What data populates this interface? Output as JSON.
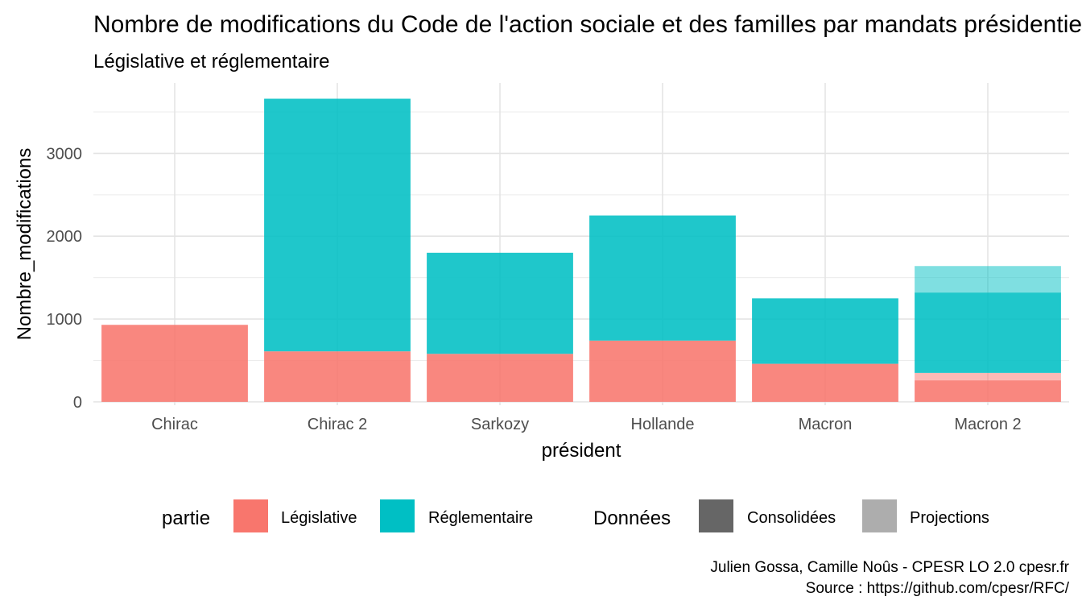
{
  "chart_data": {
    "type": "bar",
    "stacked": true,
    "title": "Nombre de modifications du Code de l'action sociale et des familles par mandats présidentiels",
    "subtitle": "Législative et réglementaire",
    "xlabel": "président",
    "ylabel": "Nombre_modifications",
    "categories": [
      "Chirac",
      "Chirac 2",
      "Sarkozy",
      "Hollande",
      "Macron",
      "Macron 2"
    ],
    "yticks": [
      0,
      1000,
      2000,
      3000
    ],
    "ylim": [
      -40,
      3850
    ],
    "grid": true,
    "legend_position": "bottom",
    "series": [
      {
        "name": "Législative",
        "part": "Législative",
        "data": "Consolidées",
        "color": "#F8766D",
        "values": [
          930,
          610,
          580,
          740,
          460,
          260
        ]
      },
      {
        "name": "Législative",
        "part": "Législative",
        "data": "Projections",
        "color": "#F8766D",
        "values": [
          0,
          0,
          0,
          0,
          0,
          90
        ]
      },
      {
        "name": "Réglementaire",
        "part": "Réglementaire",
        "data": "Consolidées",
        "color": "#00BFC4",
        "values": [
          0,
          3050,
          1220,
          1510,
          790,
          970
        ]
      },
      {
        "name": "Réglementaire",
        "part": "Réglementaire",
        "data": "Projections",
        "color": "#00BFC4",
        "values": [
          0,
          0,
          0,
          0,
          0,
          320
        ]
      }
    ],
    "legend": {
      "partie": {
        "title": "partie",
        "items": [
          {
            "label": "Législative",
            "color": "#F8766D"
          },
          {
            "label": "Réglementaire",
            "color": "#00BFC4"
          }
        ]
      },
      "donnees": {
        "title": "Données",
        "items": [
          {
            "label": "Consolidées",
            "color": "#666666"
          },
          {
            "label": "Projections",
            "color": "#ADADAD"
          }
        ]
      }
    },
    "caption": [
      "Julien Gossa, Camille Noûs - CPESR LO 2.0 cpesr.fr ",
      "Source : https://github.com/cpesr/RFC/"
    ]
  }
}
